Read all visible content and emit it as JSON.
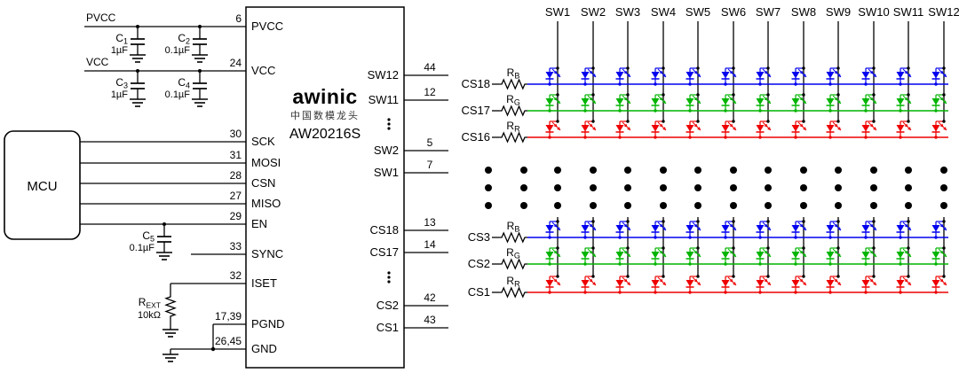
{
  "mcu": {
    "label": "MCU"
  },
  "chip": {
    "brand": "awinic",
    "brand_cn": "中国数模龙头",
    "part_number": "AW20216S",
    "brand_color": "#30AFAA",
    "left_pins": [
      {
        "name": "PVCC",
        "num": "6"
      },
      {
        "name": "VCC",
        "num": "24"
      },
      {
        "name": "SCK",
        "num": "30"
      },
      {
        "name": "MOSI",
        "num": "31"
      },
      {
        "name": "CSN",
        "num": "28"
      },
      {
        "name": "MISO",
        "num": "27"
      },
      {
        "name": "EN",
        "num": "29"
      },
      {
        "name": "SYNC",
        "num": "33"
      },
      {
        "name": "ISET",
        "num": "32"
      },
      {
        "name": "PGND",
        "num": "17,39"
      },
      {
        "name": "GND",
        "num": "26,45"
      }
    ],
    "right_pins": [
      {
        "name": "SW12",
        "num": "44"
      },
      {
        "name": "SW11",
        "num": "12"
      },
      {
        "type": "ellipsis"
      },
      {
        "name": "SW2",
        "num": "5"
      },
      {
        "name": "SW1",
        "num": "7"
      },
      {
        "name": "CS18",
        "num": "13"
      },
      {
        "name": "CS17",
        "num": "14"
      },
      {
        "type": "ellipsis"
      },
      {
        "name": "CS2",
        "num": "42"
      },
      {
        "name": "CS1",
        "num": "43"
      }
    ]
  },
  "left_circuit": {
    "pvcc_label": "PVCC",
    "vcc_label": "VCC",
    "caps": [
      {
        "base": "C",
        "sub": "1",
        "value": "1µF"
      },
      {
        "base": "C",
        "sub": "2",
        "value": "0.1µF"
      },
      {
        "base": "C",
        "sub": "3",
        "value": "1µF"
      },
      {
        "base": "C",
        "sub": "4",
        "value": "0.1µF"
      },
      {
        "base": "C",
        "sub": "5",
        "value": "0.1µF"
      }
    ],
    "rext": {
      "base": "R",
      "sub": "EXT",
      "value": "10kΩ"
    }
  },
  "matrix": {
    "sw_labels": [
      "SW1",
      "SW2",
      "SW3",
      "SW4",
      "SW5",
      "SW6",
      "SW7",
      "SW8",
      "SW9",
      "SW10",
      "SW11",
      "SW12"
    ],
    "rows": [
      {
        "cs": "CS18",
        "res_base": "R",
        "res_sub": "B",
        "color": "#0000EE"
      },
      {
        "cs": "CS17",
        "res_base": "R",
        "res_sub": "G",
        "color": "#00B400"
      },
      {
        "cs": "CS16",
        "res_base": "R",
        "res_sub": "R",
        "color": "#EE0000"
      },
      {
        "cs": "CS3",
        "res_base": "R",
        "res_sub": "B",
        "color": "#0000EE"
      },
      {
        "cs": "CS2",
        "res_base": "R",
        "res_sub": "G",
        "color": "#00B400"
      },
      {
        "cs": "CS1",
        "res_base": "R",
        "res_sub": "R",
        "color": "#EE0000"
      }
    ],
    "led_colors": {
      "blue": "#0000EE",
      "green": "#00B400",
      "red": "#EE0000"
    }
  }
}
